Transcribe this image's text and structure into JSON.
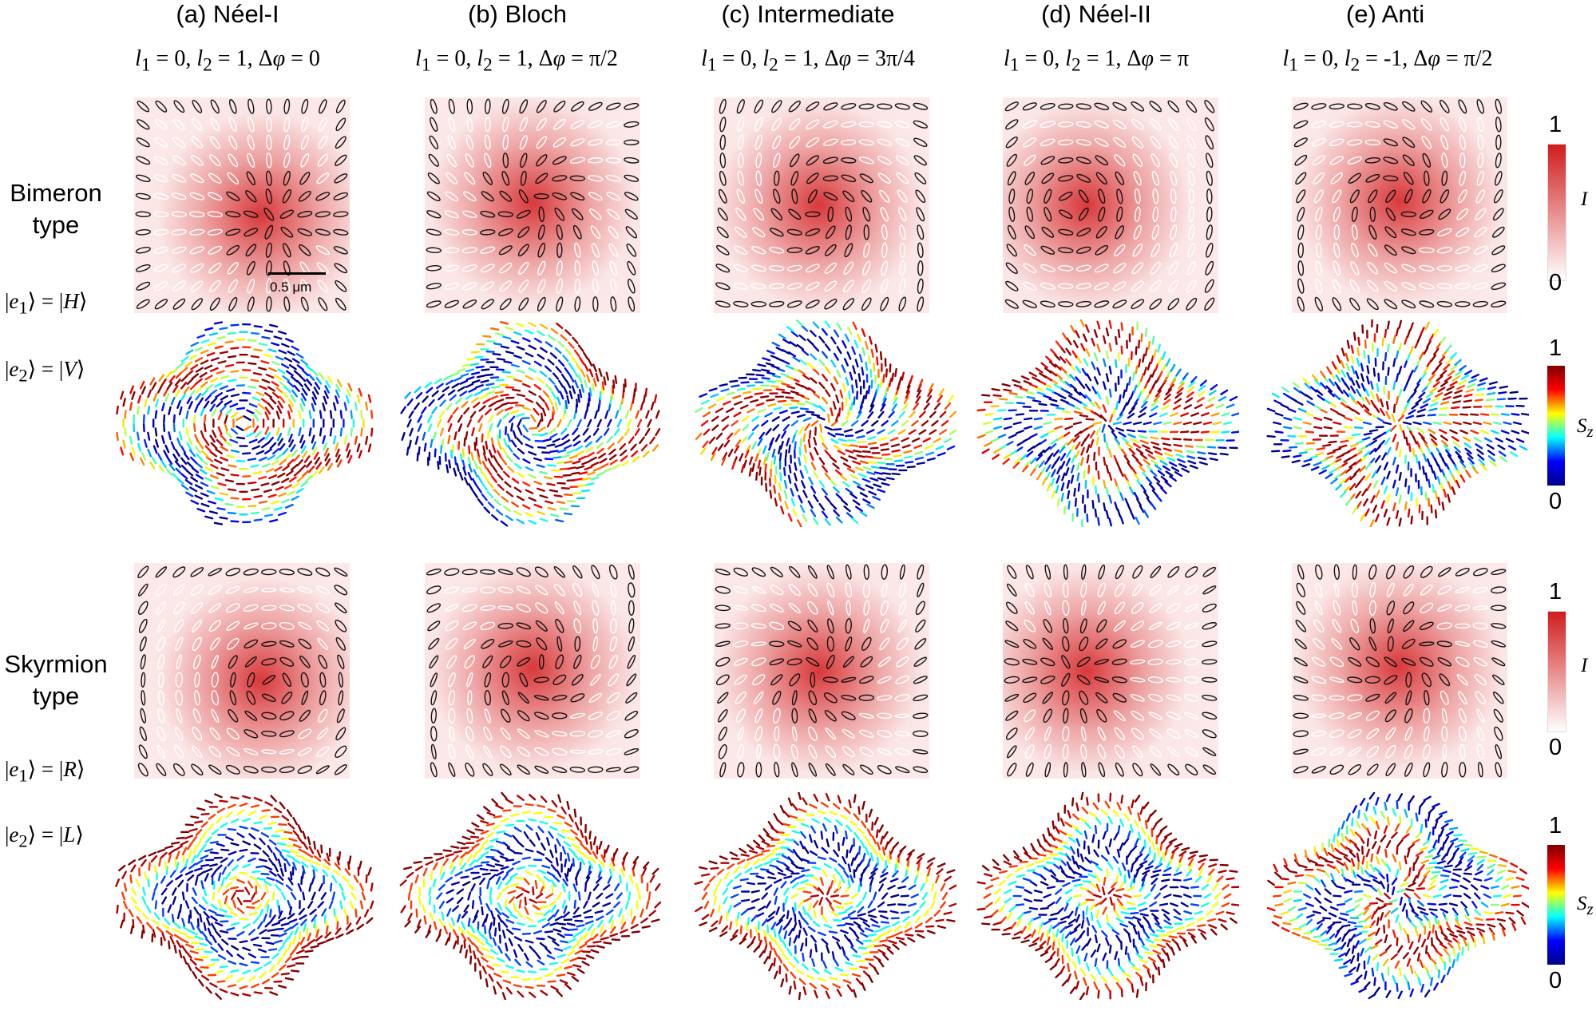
{
  "columns": [
    {
      "title": "(a) Néel-I",
      "l1": "0",
      "l2": "1",
      "dphi": "0"
    },
    {
      "title": "(b) Bloch",
      "l1": "0",
      "l2": "1",
      "dphi": "π/2"
    },
    {
      "title": "(c) Intermediate",
      "l1": "0",
      "l2": "1",
      "dphi": "3π/4"
    },
    {
      "title": "(d) Néel-II",
      "l1": "0",
      "l2": "1",
      "dphi": "π"
    },
    {
      "title": "(e) Anti",
      "l1": "0",
      "l2": "-1",
      "dphi": "π/2"
    }
  ],
  "rows": {
    "bimeron": {
      "label_line1": "Bimeron",
      "label_line2": "type",
      "e1": "H",
      "e2": "V"
    },
    "skyrmion": {
      "label_line1": "Skyrmion",
      "label_line2": "type",
      "e1": "R",
      "e2": "L"
    }
  },
  "scalebar": "0.5 μm",
  "colorbar_intensity": {
    "max": "1",
    "min": "0",
    "symbol": "I"
  },
  "colorbar_sz": {
    "max": "1",
    "min": "0",
    "symbol": "S",
    "subscript": "z"
  },
  "colors": {
    "intensity_high": "#d01c1c",
    "intensity_low": "#ffffff"
  }
}
